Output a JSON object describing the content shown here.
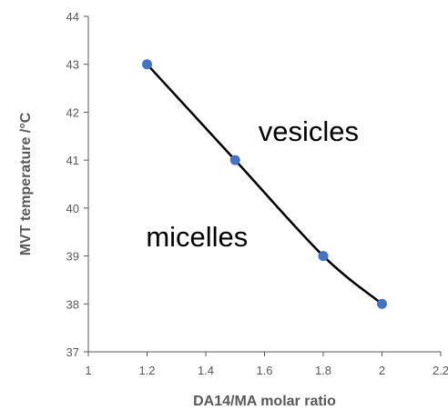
{
  "chart_data": {
    "type": "scatter",
    "xlabel": "DA14/MA molar ratio",
    "ylabel": "MVT temperature /°C",
    "xlim": [
      1,
      2.2
    ],
    "ylim": [
      37,
      44
    ],
    "xticks": [
      1,
      1.2,
      1.4,
      1.6,
      1.8,
      2,
      2.2
    ],
    "xtick_labels": [
      "1",
      "1.2",
      "1.4",
      "1.6",
      "1.8",
      "2",
      "2.2"
    ],
    "yticks": [
      37,
      38,
      39,
      40,
      41,
      42,
      43,
      44
    ],
    "ytick_labels": [
      "37",
      "38",
      "39",
      "40",
      "41",
      "42",
      "43",
      "44"
    ],
    "series": [
      {
        "x": [
          1.2,
          1.5,
          1.8,
          2.0
        ],
        "y": [
          43,
          41,
          39,
          38
        ],
        "marker": "circle",
        "marker_color": "#4472C4",
        "line": "smoothed",
        "line_color": "#000000"
      }
    ],
    "grid": false,
    "legend": "none",
    "annotations": [
      {
        "text": "vesicles",
        "x": 1.75,
        "y": 41.4
      },
      {
        "text": "micelles",
        "x": 1.37,
        "y": 39.2
      }
    ]
  }
}
